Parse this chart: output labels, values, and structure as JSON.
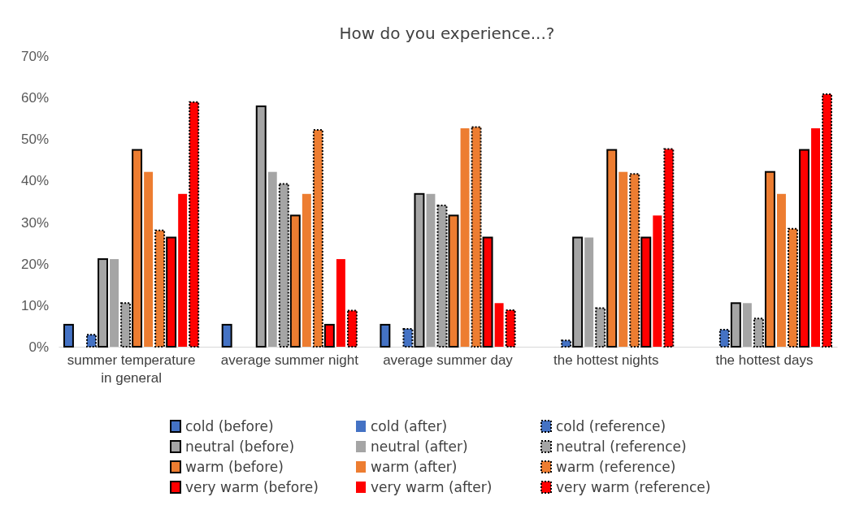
{
  "chart_data": {
    "type": "bar",
    "title": "How do you experience...?",
    "categories": [
      "summer temperature in general",
      "average summer night",
      "average summer day",
      "the hottest nights",
      "the hottest days"
    ],
    "ylim": [
      0,
      70
    ],
    "yticks": [
      {
        "value": 0,
        "label": "0%"
      },
      {
        "value": 10,
        "label": "10%"
      },
      {
        "value": 20,
        "label": "20%"
      },
      {
        "value": 30,
        "label": "30%"
      },
      {
        "value": 40,
        "label": "40%"
      },
      {
        "value": 50,
        "label": "50%"
      },
      {
        "value": 60,
        "label": "60%"
      },
      {
        "value": 70,
        "label": "70%"
      }
    ],
    "grid": false,
    "legend": "bottom",
    "series": [
      {
        "name": "cold (before)",
        "color": "#4472c4",
        "line_style": "solid",
        "values": [
          5.3,
          5.3,
          5.3,
          0,
          0
        ]
      },
      {
        "name": "cold (after)",
        "color": "#4472c4",
        "values": [
          0,
          0,
          0,
          0,
          0
        ]
      },
      {
        "name": "cold (reference)",
        "color": "#4472c4",
        "line_style": "dotted",
        "values": [
          2.9,
          0,
          4.3,
          1.5,
          4.1
        ]
      },
      {
        "name": "neutral (before)",
        "color": "#a5a5a5",
        "line_style": "solid",
        "values": [
          21.1,
          57.9,
          36.8,
          26.3,
          10.5
        ]
      },
      {
        "name": "neutral (after)",
        "color": "#a5a5a5",
        "values": [
          21.1,
          42.1,
          36.8,
          26.3,
          10.5
        ]
      },
      {
        "name": "neutral (reference)",
        "color": "#a5a5a5",
        "line_style": "dotted",
        "values": [
          10.5,
          39.2,
          34,
          9.3,
          6.8
        ]
      },
      {
        "name": "warm (before)",
        "color": "#ed7d31",
        "line_style": "solid",
        "values": [
          47.4,
          31.6,
          31.6,
          47.4,
          42.1
        ]
      },
      {
        "name": "warm (after)",
        "color": "#ed7d31",
        "values": [
          42.1,
          36.8,
          52.6,
          42.1,
          36.8
        ]
      },
      {
        "name": "warm (reference)",
        "color": "#ed7d31",
        "line_style": "dotted",
        "values": [
          28,
          52.2,
          52.9,
          41.6,
          28.4
        ]
      },
      {
        "name": "very warm (before)",
        "color": "#ff0000",
        "line_style": "solid",
        "values": [
          26.3,
          5.3,
          26.3,
          26.3,
          47.4
        ]
      },
      {
        "name": "very warm (after)",
        "color": "#ff0000",
        "values": [
          36.8,
          21.1,
          10.5,
          31.6,
          52.6
        ]
      },
      {
        "name": "very warm (reference)",
        "color": "#ff0000",
        "line_style": "dotted",
        "values": [
          58.9,
          8.7,
          8.8,
          47.6,
          60.8
        ]
      }
    ]
  }
}
